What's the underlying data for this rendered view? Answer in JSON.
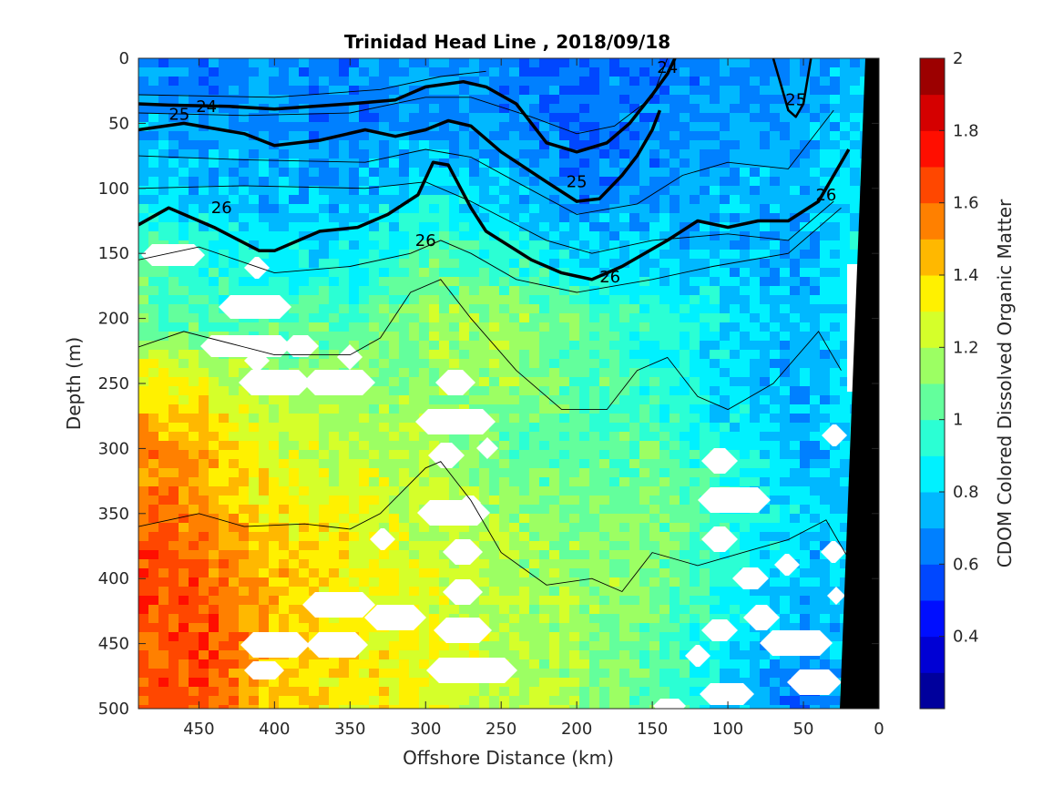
{
  "chart_data": {
    "type": "contour",
    "title": "Trinidad Head Line , 2018/09/18",
    "xlabel": "Offshore Distance (km)",
    "ylabel": "Depth (m)",
    "xlim": [
      490,
      0
    ],
    "ylim": [
      0,
      500
    ],
    "x_direction": "reversed",
    "y_direction": "reversed",
    "x_ticks": [
      "450",
      "400",
      "350",
      "300",
      "250",
      "200",
      "150",
      "100",
      "50",
      "0"
    ],
    "x_tick_values": [
      450,
      400,
      350,
      300,
      250,
      200,
      150,
      100,
      50,
      0
    ],
    "y_ticks": [
      "0",
      "50",
      "100",
      "150",
      "200",
      "250",
      "300",
      "350",
      "400",
      "450",
      "500"
    ],
    "y_tick_values": [
      0,
      50,
      100,
      150,
      200,
      250,
      300,
      350,
      400,
      450,
      500
    ],
    "colorbar": {
      "label": "CDOM Colored Dissolved Organic Matter",
      "range": [
        0.2,
        2
      ],
      "ticks": [
        "0.4",
        "0.6",
        "0.8",
        "1",
        "1.2",
        "1.4",
        "1.6",
        "1.8",
        "2"
      ],
      "tick_values": [
        0.4,
        0.6,
        0.8,
        1,
        1.2,
        1.4,
        1.6,
        1.8,
        2
      ],
      "colormap": "jet",
      "levels": 18
    },
    "cdom_field": {
      "x_km": [
        490,
        450,
        400,
        350,
        300,
        250,
        200,
        150,
        100,
        50,
        20
      ],
      "depth_m": [
        0,
        50,
        100,
        150,
        200,
        250,
        300,
        350,
        400,
        450,
        500
      ],
      "values": [
        [
          0.65,
          0.65,
          0.7,
          0.65,
          0.7,
          0.65,
          0.6,
          0.65,
          0.7,
          0.7,
          0.75
        ],
        [
          0.75,
          0.7,
          0.7,
          0.65,
          0.7,
          0.7,
          0.6,
          0.65,
          0.7,
          0.7,
          0.8
        ],
        [
          0.8,
          0.75,
          0.75,
          0.75,
          0.85,
          0.75,
          0.65,
          0.7,
          0.75,
          0.75,
          0.85
        ],
        [
          1.0,
          0.95,
          0.85,
          0.85,
          1.0,
          0.95,
          0.8,
          0.8,
          0.75,
          0.7,
          0.85
        ],
        [
          1.05,
          1.0,
          1.0,
          1.0,
          1.15,
          1.15,
          1.05,
          0.95,
          0.85,
          0.75,
          0.85
        ],
        [
          1.35,
          1.3,
          1.15,
          1.15,
          1.1,
          1.15,
          1.05,
          0.95,
          0.8,
          0.75,
          0.8
        ],
        [
          1.55,
          1.45,
          1.25,
          1.2,
          1.2,
          1.05,
          1.0,
          1.05,
          0.9,
          0.75,
          0.8
        ],
        [
          1.6,
          1.55,
          1.35,
          1.3,
          1.2,
          1.15,
          1.1,
          1.1,
          0.95,
          0.8,
          0.8
        ],
        [
          1.7,
          1.6,
          1.45,
          1.35,
          1.25,
          1.2,
          1.15,
          1.1,
          0.95,
          0.75,
          0.8
        ],
        [
          1.6,
          1.7,
          1.4,
          1.35,
          1.3,
          1.2,
          1.15,
          1.05,
          0.85,
          0.7,
          0.8
        ],
        [
          1.6,
          1.65,
          1.4,
          1.35,
          1.3,
          1.2,
          1.15,
          1.05,
          0.8,
          0.6,
          0.75
        ]
      ]
    },
    "density_contours": [
      {
        "label": "24",
        "x": [
          490,
          470,
          430,
          400,
          350,
          320,
          300,
          275,
          260,
          240,
          220,
          200,
          180,
          165,
          150,
          140,
          135
        ],
        "y": [
          35,
          36,
          37,
          39,
          35,
          32,
          22,
          18,
          22,
          35,
          65,
          72,
          65,
          50,
          28,
          12,
          0
        ]
      },
      {
        "label": "25",
        "x": [
          490,
          460,
          420,
          400,
          370,
          340,
          320,
          300,
          285,
          270,
          250,
          220,
          200,
          185,
          170,
          160,
          150,
          145
        ],
        "y": [
          55,
          50,
          58,
          67,
          63,
          55,
          60,
          55,
          48,
          52,
          72,
          95,
          110,
          108,
          90,
          75,
          55,
          40
        ]
      },
      {
        "label": "25",
        "x": [
          70,
          65,
          60,
          55,
          50,
          45
        ],
        "y": [
          0,
          20,
          40,
          45,
          35,
          0
        ]
      },
      {
        "label": "26",
        "x": [
          490,
          470,
          440,
          410,
          400,
          370,
          345,
          325,
          305,
          295,
          285,
          270,
          260,
          230,
          210,
          190,
          170,
          140,
          120,
          100,
          80,
          60,
          40,
          20
        ],
        "y": [
          128,
          115,
          130,
          148,
          148,
          133,
          130,
          120,
          105,
          80,
          82,
          115,
          133,
          155,
          165,
          170,
          160,
          140,
          125,
          130,
          125,
          125,
          110,
          70
        ]
      }
    ],
    "black_region": "seafloor/coast at 0-25 km",
    "missing_data": "white patches"
  }
}
